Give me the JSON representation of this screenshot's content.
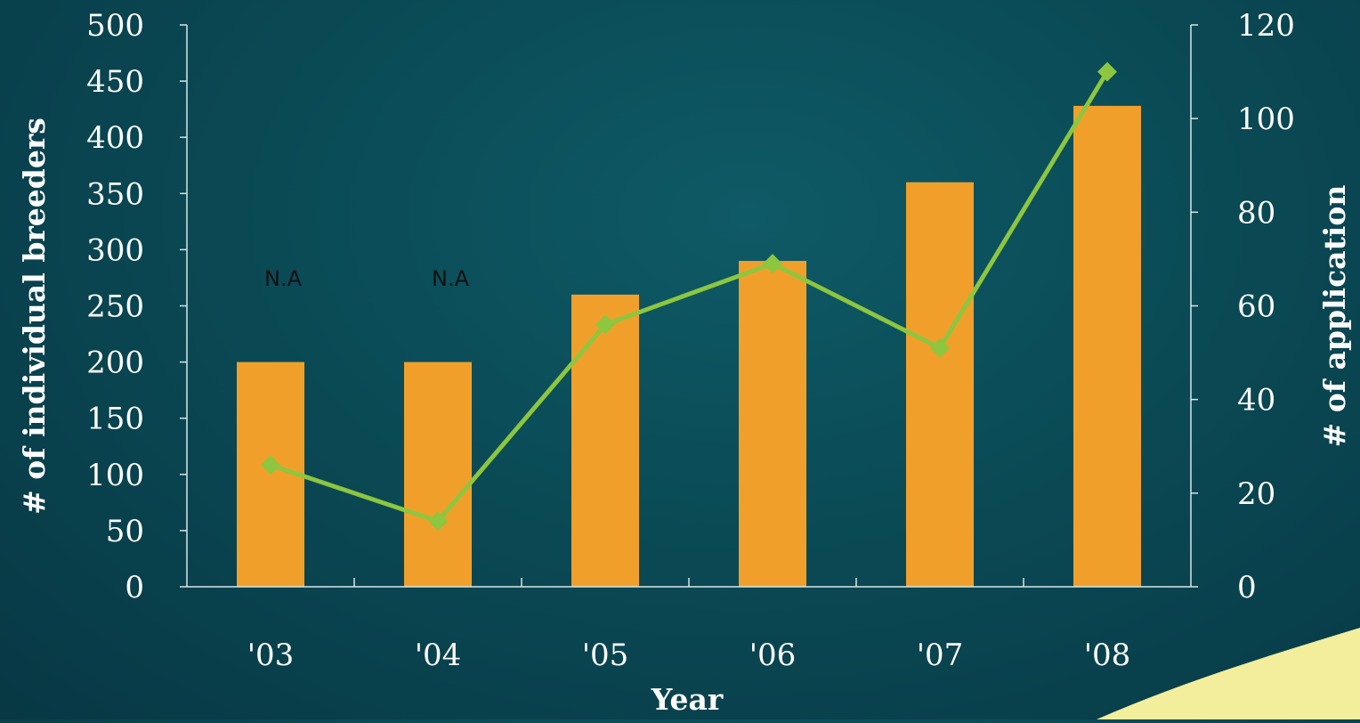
{
  "chart_data": {
    "type": "bar",
    "categories": [
      "'03",
      "'04",
      "'05",
      "'06",
      "'07",
      "'08"
    ],
    "series": [
      {
        "type": "bar",
        "axis": "left",
        "values": [
          200,
          200,
          260,
          290,
          360,
          428
        ]
      },
      {
        "type": "line",
        "axis": "right",
        "values": [
          26,
          14,
          56,
          69,
          51,
          110
        ]
      }
    ],
    "annotations": [
      {
        "category": "'03",
        "text": "N.A"
      },
      {
        "category": "'04",
        "text": "N.A"
      }
    ],
    "xlabel": "Year",
    "ylabel_left": "# of individual breeders",
    "ylabel_right": "# of application",
    "ylim_left": [
      0,
      500
    ],
    "ylim_right": [
      0,
      120
    ],
    "yticks_left": [
      "0",
      "50",
      "100",
      "150",
      "200",
      "250",
      "300",
      "350",
      "400",
      "450",
      "500"
    ],
    "yticks_right": [
      "0",
      "20",
      "40",
      "60",
      "80",
      "100",
      "120"
    ],
    "grid": false,
    "colors": {
      "bars": "#f0a02a",
      "line": "#8dc63f",
      "accent": "#f3ee9b"
    }
  }
}
